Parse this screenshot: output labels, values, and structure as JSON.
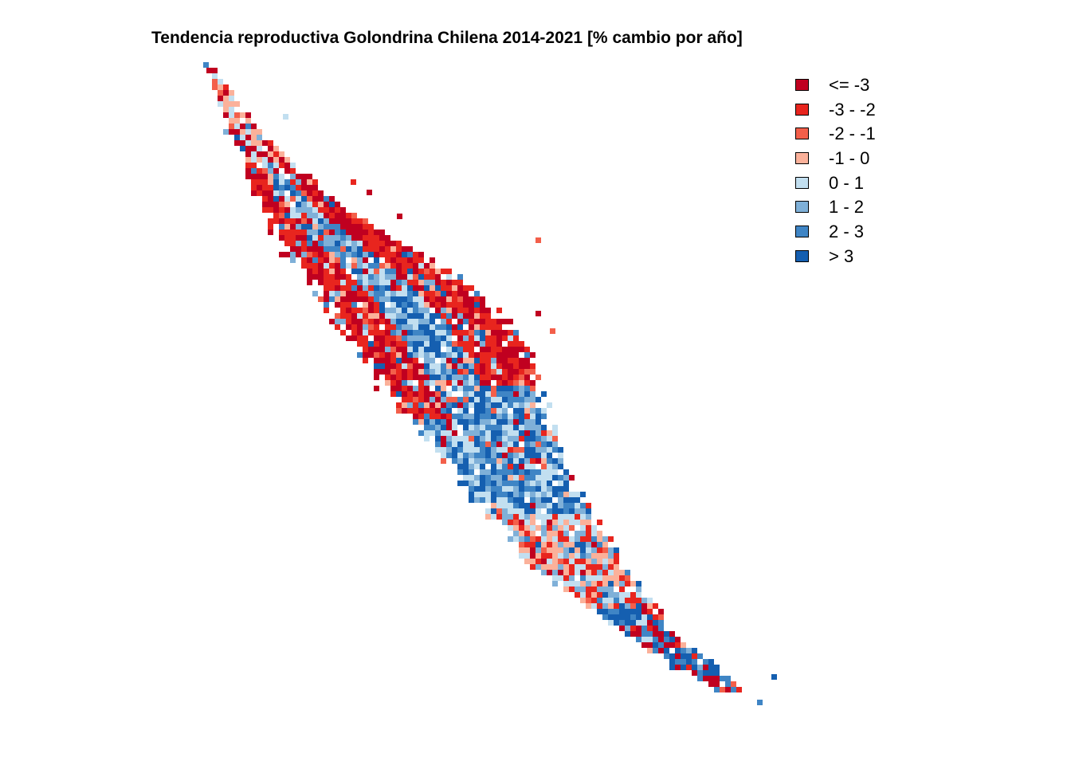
{
  "title": "Tendencia reproductiva Golondrina Chilena 2014-2021 [% cambio por año]",
  "legend": {
    "placement": "top-right",
    "items": [
      {
        "label": "<= -3",
        "color": "#c00020"
      },
      {
        "label": "-3 - -2",
        "color": "#e8251e"
      },
      {
        "label": "-2 - -1",
        "color": "#f35f4a"
      },
      {
        "label": "-1 - 0",
        "color": "#fbb19a"
      },
      {
        "label": "0 - 1",
        "color": "#c2dff0"
      },
      {
        "label": "1 - 2",
        "color": "#7fb0d8"
      },
      {
        "label": "2 - 3",
        "color": "#3f85c5"
      },
      {
        "label": "> 3",
        "color": "#155fb0"
      }
    ]
  },
  "map": {
    "type": "raster",
    "region": "Chile (continental, central-south)",
    "zones": [
      {
        "name": "north-tip",
        "dominant_classes": [
          "<= -3",
          "-1 - 0",
          "0 - 1"
        ]
      },
      {
        "name": "coastal-strip",
        "dominant_classes": [
          "<= -3",
          "-3 - -2"
        ]
      },
      {
        "name": "andes-north",
        "dominant_classes": [
          "<= -3",
          "-3 - -2"
        ]
      },
      {
        "name": "central-valley",
        "dominant_classes": [
          "2 - 3",
          "> 3",
          "0 - 1",
          "1 - 2"
        ]
      },
      {
        "name": "south-central",
        "dominant_classes": [
          "1 - 2",
          "0 - 1",
          "-1 - 0",
          "-3 - -2"
        ]
      },
      {
        "name": "southern-tip",
        "dominant_classes": [
          "<= -3",
          "2 - 3",
          "> 3"
        ]
      }
    ]
  }
}
